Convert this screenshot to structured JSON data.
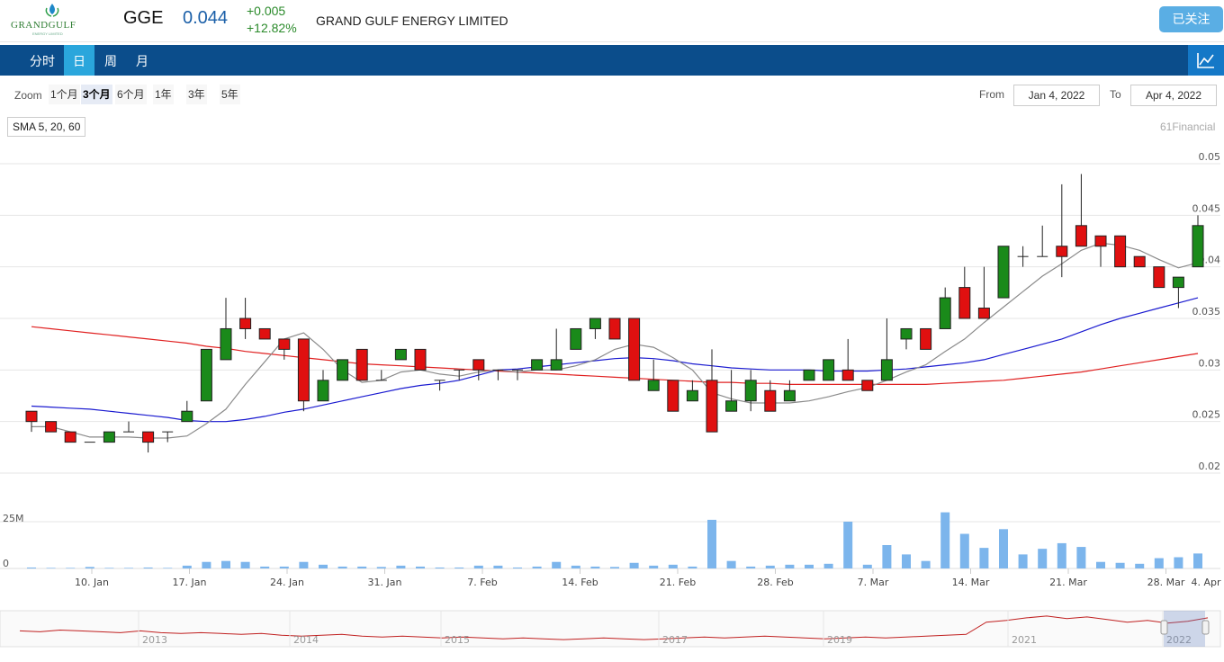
{
  "header": {
    "logo_text": "GRANDGULF",
    "logo_sub": "ENERGY LIMITED",
    "ticker": "GGE",
    "price": "0.044",
    "change": "+0.005",
    "change_pct": "+12.82%",
    "company": "GRAND GULF ENERGY LIMITED",
    "follow_label": "已关注"
  },
  "nav": {
    "tabs": [
      "分时",
      "日",
      "周",
      "月"
    ],
    "active": "日",
    "chart_icon": "line-chart-icon"
  },
  "range": {
    "zoom_label": "Zoom",
    "zoom_options": [
      "1个月",
      "3个月",
      "6个月",
      "1年",
      "3年",
      "5年"
    ],
    "zoom_active": "3个月",
    "from_label": "From",
    "from_value": "Jan 4, 2022",
    "to_label": "To",
    "to_value": "Apr 4, 2022"
  },
  "indicator_label": "SMA 5, 20, 60",
  "credit": "61Financial",
  "colors": {
    "up": "#1a8a1a",
    "down": "#e01010",
    "sma5": "#8a8a8a",
    "sma20": "#1a1ad0",
    "sma60": "#e02020",
    "volume": "#7cb5ec",
    "nav": "#0b4d8b",
    "nav_active": "#2aa6dc"
  },
  "chart_data": {
    "type": "candlestick",
    "y_ticks": [
      "0.02",
      "0.025",
      "0.03",
      "0.035",
      "0.04",
      "0.045",
      "0.05"
    ],
    "ylim": [
      0.02,
      0.05
    ],
    "x_ticks": [
      "10. Jan",
      "17. Jan",
      "24. Jan",
      "31. Jan",
      "7. Feb",
      "14. Feb",
      "21. Feb",
      "28. Feb",
      "7. Mar",
      "14. Mar",
      "21. Mar",
      "28. Mar",
      "4. Apr"
    ],
    "volume_ticks": [
      "0",
      "25M"
    ],
    "candles": [
      {
        "date": "2022-01-04",
        "o": 0.026,
        "h": 0.026,
        "l": 0.024,
        "c": 0.025,
        "v": 0.5
      },
      {
        "date": "2022-01-05",
        "o": 0.025,
        "h": 0.025,
        "l": 0.024,
        "c": 0.024,
        "v": 0.3
      },
      {
        "date": "2022-01-06",
        "o": 0.024,
        "h": 0.024,
        "l": 0.023,
        "c": 0.023,
        "v": 0.3
      },
      {
        "date": "2022-01-07",
        "o": 0.023,
        "h": 0.023,
        "l": 0.023,
        "c": 0.023,
        "v": 0.8
      },
      {
        "date": "2022-01-10",
        "o": 0.023,
        "h": 0.024,
        "l": 0.023,
        "c": 0.024,
        "v": 0.3
      },
      {
        "date": "2022-01-11",
        "o": 0.024,
        "h": 0.025,
        "l": 0.024,
        "c": 0.024,
        "v": 0.3
      },
      {
        "date": "2022-01-12",
        "o": 0.024,
        "h": 0.024,
        "l": 0.022,
        "c": 0.023,
        "v": 0.5
      },
      {
        "date": "2022-01-13",
        "o": 0.024,
        "h": 0.024,
        "l": 0.023,
        "c": 0.024,
        "v": 0.3
      },
      {
        "date": "2022-01-14",
        "o": 0.025,
        "h": 0.027,
        "l": 0.025,
        "c": 0.026,
        "v": 1.5
      },
      {
        "date": "2022-01-17",
        "o": 0.027,
        "h": 0.032,
        "l": 0.027,
        "c": 0.032,
        "v": 3.5
      },
      {
        "date": "2022-01-18",
        "o": 0.031,
        "h": 0.037,
        "l": 0.031,
        "c": 0.034,
        "v": 4.0
      },
      {
        "date": "2022-01-19",
        "o": 0.035,
        "h": 0.037,
        "l": 0.033,
        "c": 0.034,
        "v": 3.5
      },
      {
        "date": "2022-01-20",
        "o": 0.034,
        "h": 0.034,
        "l": 0.033,
        "c": 0.033,
        "v": 1.0
      },
      {
        "date": "2022-01-21",
        "o": 0.033,
        "h": 0.033,
        "l": 0.031,
        "c": 0.032,
        "v": 1.0
      },
      {
        "date": "2022-01-24",
        "o": 0.033,
        "h": 0.033,
        "l": 0.026,
        "c": 0.027,
        "v": 3.5
      },
      {
        "date": "2022-01-25",
        "o": 0.027,
        "h": 0.03,
        "l": 0.027,
        "c": 0.029,
        "v": 2.0
      },
      {
        "date": "2022-01-26",
        "o": 0.029,
        "h": 0.031,
        "l": 0.029,
        "c": 0.031,
        "v": 1.0
      },
      {
        "date": "2022-01-27",
        "o": 0.032,
        "h": 0.032,
        "l": 0.029,
        "c": 0.029,
        "v": 1.0
      },
      {
        "date": "2022-01-28",
        "o": 0.029,
        "h": 0.03,
        "l": 0.029,
        "c": 0.029,
        "v": 0.8
      },
      {
        "date": "2022-01-31",
        "o": 0.031,
        "h": 0.032,
        "l": 0.031,
        "c": 0.032,
        "v": 1.5
      },
      {
        "date": "2022-02-01",
        "o": 0.032,
        "h": 0.032,
        "l": 0.03,
        "c": 0.03,
        "v": 1.0
      },
      {
        "date": "2022-02-02",
        "o": 0.029,
        "h": 0.029,
        "l": 0.028,
        "c": 0.029,
        "v": 0.5
      },
      {
        "date": "2022-02-03",
        "o": 0.03,
        "h": 0.03,
        "l": 0.029,
        "c": 0.03,
        "v": 0.5
      },
      {
        "date": "2022-02-04",
        "o": 0.031,
        "h": 0.031,
        "l": 0.029,
        "c": 0.03,
        "v": 1.5
      },
      {
        "date": "2022-02-07",
        "o": 0.03,
        "h": 0.03,
        "l": 0.029,
        "c": 0.03,
        "v": 1.5
      },
      {
        "date": "2022-02-08",
        "o": 0.03,
        "h": 0.03,
        "l": 0.029,
        "c": 0.03,
        "v": 0.5
      },
      {
        "date": "2022-02-09",
        "o": 0.03,
        "h": 0.031,
        "l": 0.03,
        "c": 0.031,
        "v": 1.0
      },
      {
        "date": "2022-02-10",
        "o": 0.03,
        "h": 0.034,
        "l": 0.03,
        "c": 0.031,
        "v": 3.5
      },
      {
        "date": "2022-02-11",
        "o": 0.032,
        "h": 0.034,
        "l": 0.032,
        "c": 0.034,
        "v": 1.5
      },
      {
        "date": "2022-02-14",
        "o": 0.034,
        "h": 0.035,
        "l": 0.033,
        "c": 0.035,
        "v": 1.0
      },
      {
        "date": "2022-02-15",
        "o": 0.035,
        "h": 0.035,
        "l": 0.033,
        "c": 0.033,
        "v": 0.8
      },
      {
        "date": "2022-02-16",
        "o": 0.035,
        "h": 0.035,
        "l": 0.029,
        "c": 0.029,
        "v": 3.0
      },
      {
        "date": "2022-02-17",
        "o": 0.028,
        "h": 0.031,
        "l": 0.028,
        "c": 0.029,
        "v": 1.5
      },
      {
        "date": "2022-02-18",
        "o": 0.029,
        "h": 0.029,
        "l": 0.026,
        "c": 0.026,
        "v": 2.0
      },
      {
        "date": "2022-02-21",
        "o": 0.027,
        "h": 0.029,
        "l": 0.027,
        "c": 0.028,
        "v": 1.0
      },
      {
        "date": "2022-02-22",
        "o": 0.029,
        "h": 0.032,
        "l": 0.024,
        "c": 0.024,
        "v": 26.0
      },
      {
        "date": "2022-02-23",
        "o": 0.026,
        "h": 0.03,
        "l": 0.026,
        "c": 0.027,
        "v": 4.0
      },
      {
        "date": "2022-02-24",
        "o": 0.027,
        "h": 0.03,
        "l": 0.026,
        "c": 0.029,
        "v": 1.0
      },
      {
        "date": "2022-02-25",
        "o": 0.028,
        "h": 0.029,
        "l": 0.026,
        "c": 0.026,
        "v": 1.5
      },
      {
        "date": "2022-02-28",
        "o": 0.027,
        "h": 0.029,
        "l": 0.027,
        "c": 0.028,
        "v": 2.0
      },
      {
        "date": "2022-03-01",
        "o": 0.029,
        "h": 0.03,
        "l": 0.029,
        "c": 0.03,
        "v": 2.0
      },
      {
        "date": "2022-03-02",
        "o": 0.029,
        "h": 0.031,
        "l": 0.029,
        "c": 0.031,
        "v": 2.5
      },
      {
        "date": "2022-03-03",
        "o": 0.03,
        "h": 0.033,
        "l": 0.029,
        "c": 0.029,
        "v": 25.0
      },
      {
        "date": "2022-03-04",
        "o": 0.029,
        "h": 0.029,
        "l": 0.028,
        "c": 0.028,
        "v": 2.0
      },
      {
        "date": "2022-03-07",
        "o": 0.029,
        "h": 0.035,
        "l": 0.029,
        "c": 0.031,
        "v": 12.5
      },
      {
        "date": "2022-03-08",
        "o": 0.033,
        "h": 0.034,
        "l": 0.032,
        "c": 0.034,
        "v": 7.5
      },
      {
        "date": "2022-03-09",
        "o": 0.034,
        "h": 0.034,
        "l": 0.032,
        "c": 0.032,
        "v": 4.0
      },
      {
        "date": "2022-03-10",
        "o": 0.034,
        "h": 0.038,
        "l": 0.034,
        "c": 0.037,
        "v": 30.0
      },
      {
        "date": "2022-03-11",
        "o": 0.038,
        "h": 0.04,
        "l": 0.035,
        "c": 0.035,
        "v": 18.5
      },
      {
        "date": "2022-03-14",
        "o": 0.036,
        "h": 0.04,
        "l": 0.035,
        "c": 0.035,
        "v": 11.0
      },
      {
        "date": "2022-03-15",
        "o": 0.037,
        "h": 0.042,
        "l": 0.037,
        "c": 0.042,
        "v": 21.0
      },
      {
        "date": "2022-03-16",
        "o": 0.041,
        "h": 0.042,
        "l": 0.04,
        "c": 0.041,
        "v": 7.5
      },
      {
        "date": "2022-03-17",
        "o": 0.041,
        "h": 0.044,
        "l": 0.041,
        "c": 0.041,
        "v": 10.5
      },
      {
        "date": "2022-03-18",
        "o": 0.042,
        "h": 0.048,
        "l": 0.039,
        "c": 0.041,
        "v": 13.5
      },
      {
        "date": "2022-03-21",
        "o": 0.044,
        "h": 0.049,
        "l": 0.042,
        "c": 0.042,
        "v": 11.5
      },
      {
        "date": "2022-03-22",
        "o": 0.043,
        "h": 0.043,
        "l": 0.04,
        "c": 0.042,
        "v": 3.5
      },
      {
        "date": "2022-03-23",
        "o": 0.043,
        "h": 0.043,
        "l": 0.04,
        "c": 0.04,
        "v": 3.0
      },
      {
        "date": "2022-03-24",
        "o": 0.041,
        "h": 0.041,
        "l": 0.04,
        "c": 0.04,
        "v": 2.5
      },
      {
        "date": "2022-03-25",
        "o": 0.04,
        "h": 0.04,
        "l": 0.038,
        "c": 0.038,
        "v": 5.5
      },
      {
        "date": "2022-03-28",
        "o": 0.038,
        "h": 0.039,
        "l": 0.036,
        "c": 0.039,
        "v": 6.0
      },
      {
        "date": "2022-04-04",
        "o": 0.04,
        "h": 0.045,
        "l": 0.04,
        "c": 0.044,
        "v": 8.0
      }
    ],
    "sma5": [
      0.0245,
      0.0245,
      0.024,
      0.0235,
      0.0235,
      0.0235,
      0.0234,
      0.0234,
      0.0236,
      0.0248,
      0.0262,
      0.0286,
      0.0308,
      0.033,
      0.0336,
      0.032,
      0.03,
      0.0288,
      0.029,
      0.0298,
      0.03,
      0.0296,
      0.0294,
      0.0298,
      0.03,
      0.0298,
      0.03,
      0.03,
      0.0304,
      0.031,
      0.032,
      0.0325,
      0.0322,
      0.0312,
      0.03,
      0.0278,
      0.0272,
      0.0268,
      0.0268,
      0.0268,
      0.027,
      0.0274,
      0.0279,
      0.0283,
      0.029,
      0.0298,
      0.0305,
      0.0318,
      0.033,
      0.0346,
      0.0361,
      0.0376,
      0.0391,
      0.0403,
      0.0416,
      0.0423,
      0.0421,
      0.0416,
      0.0407,
      0.0399,
      0.0404
    ],
    "sma20": [
      0.0265,
      0.0264,
      0.0263,
      0.0262,
      0.026,
      0.0258,
      0.0256,
      0.0254,
      0.0251,
      0.025,
      0.025,
      0.0252,
      0.0255,
      0.0259,
      0.0262,
      0.0266,
      0.027,
      0.0274,
      0.0278,
      0.0282,
      0.0285,
      0.0287,
      0.029,
      0.0295,
      0.03,
      0.0301,
      0.0303,
      0.0305,
      0.0307,
      0.0309,
      0.0311,
      0.0312,
      0.0311,
      0.0309,
      0.0306,
      0.0304,
      0.0302,
      0.0301,
      0.03,
      0.03,
      0.03,
      0.0299,
      0.0299,
      0.0299,
      0.03,
      0.0301,
      0.0303,
      0.0305,
      0.0307,
      0.031,
      0.0315,
      0.032,
      0.0325,
      0.033,
      0.0337,
      0.0344,
      0.035,
      0.0355,
      0.036,
      0.0365,
      0.037
    ],
    "sma60": [
      0.0342,
      0.034,
      0.0338,
      0.0336,
      0.0334,
      0.0332,
      0.033,
      0.0328,
      0.0326,
      0.0323,
      0.0321,
      0.0318,
      0.0316,
      0.0314,
      0.0312,
      0.031,
      0.0308,
      0.0306,
      0.0305,
      0.0304,
      0.0303,
      0.0302,
      0.0301,
      0.03,
      0.0299,
      0.0298,
      0.0297,
      0.0296,
      0.0295,
      0.0294,
      0.0293,
      0.0292,
      0.0291,
      0.029,
      0.0289,
      0.0288,
      0.0288,
      0.0287,
      0.0287,
      0.0286,
      0.0286,
      0.0286,
      0.0286,
      0.0286,
      0.0286,
      0.0286,
      0.0286,
      0.0287,
      0.0288,
      0.0289,
      0.029,
      0.0292,
      0.0294,
      0.0296,
      0.0298,
      0.0301,
      0.0304,
      0.0307,
      0.031,
      0.0313,
      0.0316
    ],
    "navigator": {
      "years": [
        "2013",
        "2014",
        "2015",
        "2017",
        "2019",
        "2021",
        "2022"
      ],
      "series": [
        0.03,
        0.029,
        0.031,
        0.03,
        0.029,
        0.028,
        0.03,
        0.028,
        0.027,
        0.028,
        0.027,
        0.026,
        0.027,
        0.025,
        0.024,
        0.025,
        0.026,
        0.024,
        0.023,
        0.024,
        0.023,
        0.022,
        0.023,
        0.022,
        0.021,
        0.022,
        0.021,
        0.02,
        0.021,
        0.022,
        0.021,
        0.02,
        0.021,
        0.022,
        0.023,
        0.022,
        0.023,
        0.024,
        0.023,
        0.022,
        0.021,
        0.022,
        0.023,
        0.022,
        0.023,
        0.024,
        0.025,
        0.026,
        0.04,
        0.042,
        0.045,
        0.047,
        0.044,
        0.046,
        0.043,
        0.04,
        0.042,
        0.039,
        0.041,
        0.045
      ]
    }
  }
}
